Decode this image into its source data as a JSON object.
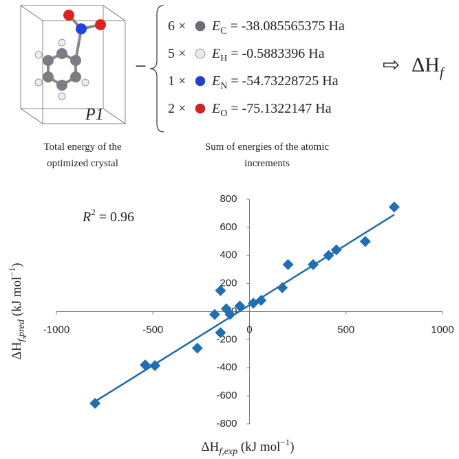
{
  "diagram": {
    "cell_label": "P1",
    "minus": "−",
    "rows": [
      {
        "count": "6 ×",
        "color": "#6b6e75",
        "symbol": "E",
        "sub": "C",
        "value": " = -38.085565375 Ha"
      },
      {
        "count": "5 ×",
        "color": "#e8e8ee",
        "symbol": "E",
        "sub": "H",
        "value": " = -0.5883396 Ha"
      },
      {
        "count": "1 ×",
        "color": "#1f3fd8",
        "symbol": "E",
        "sub": "N",
        "value": " = -54.73228725 Ha"
      },
      {
        "count": "2 ×",
        "color": "#d81e1e",
        "symbol": "E",
        "sub": "O",
        "value": " = -75.1322147 Ha"
      }
    ],
    "arrow": "⇨",
    "result": {
      "base": "ΔH",
      "sub": "f"
    },
    "captions": [
      [
        "Total energy of the",
        "optimized crystal"
      ],
      [
        "Sum of energies of the atomic",
        "increments"
      ]
    ]
  },
  "chart_data": {
    "type": "scatter",
    "annotation": {
      "base": "R",
      "sup": "2",
      "rest": " = 0.96"
    },
    "x_label": {
      "base": "ΔH",
      "sub": "f,exp",
      "rest": " (kJ mol",
      "sup": "−1",
      "end": ")"
    },
    "y_label": {
      "base": "ΔH",
      "sub": "f,pred",
      "rest": " (kJ mol",
      "sup": "−1",
      "end": ")"
    },
    "x": [
      -800,
      -540,
      -490,
      -270,
      -180,
      -150,
      -150,
      -120,
      -100,
      -50,
      20,
      60,
      170,
      200,
      330,
      410,
      450,
      600,
      750
    ],
    "values": [
      -653,
      -380,
      -385,
      -260,
      -20,
      150,
      -150,
      20,
      -20,
      40,
      60,
      80,
      170,
      335,
      335,
      400,
      440,
      500,
      745
    ],
    "color": "#1f6fb2",
    "trend_x": [
      -800,
      750
    ],
    "trend_y": [
      -640,
      690
    ],
    "trend_color": "#1c68a6",
    "xlim": [
      -1000,
      1000
    ],
    "ylim": [
      -800,
      800
    ],
    "xticks": [
      -1000,
      -500,
      0,
      500,
      1000
    ],
    "yticks": [
      -800,
      -600,
      -400,
      -200,
      0,
      200,
      400,
      600,
      800
    ]
  }
}
